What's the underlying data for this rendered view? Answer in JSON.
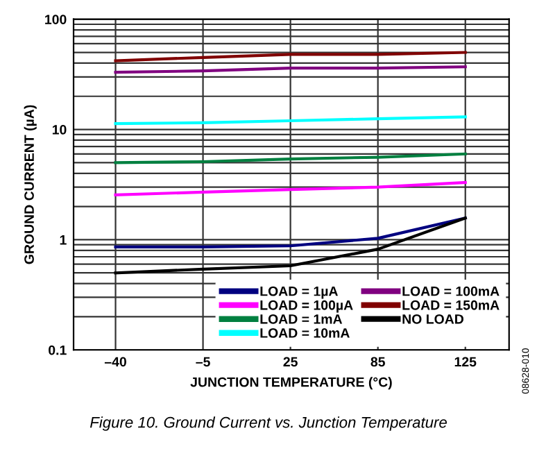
{
  "chart_data": {
    "type": "line",
    "xlabel": "JUNCTION TEMPERATURE (°C)",
    "ylabel": "GROUND CURRENT (µA)",
    "categories": [
      "–40",
      "–5",
      "25",
      "85",
      "125"
    ],
    "log": true,
    "ylim": [
      0.1,
      100
    ],
    "yticks": [
      0.1,
      1,
      10,
      100
    ],
    "grid": true,
    "legend": "bottom right",
    "marker": "none",
    "line_style": "solid",
    "series": [
      {
        "name": "LOAD = 1µA",
        "color": "#000080",
        "values": [
          0.86,
          0.86,
          0.88,
          1.03,
          1.57
        ]
      },
      {
        "name": "LOAD = 100µA",
        "color": "#ff00ff",
        "values": [
          2.55,
          2.7,
          2.85,
          3.0,
          3.3
        ]
      },
      {
        "name": "LOAD = 1mA",
        "color": "#008040",
        "values": [
          5.0,
          5.1,
          5.4,
          5.6,
          6.0
        ]
      },
      {
        "name": "LOAD = 10mA",
        "color": "#00ffff",
        "values": [
          11.3,
          11.5,
          12,
          12.5,
          13
        ]
      },
      {
        "name": "LOAD = 100mA",
        "color": "#800080",
        "values": [
          33,
          34,
          36,
          36,
          37
        ]
      },
      {
        "name": "LOAD = 150mA",
        "color": "#800000",
        "values": [
          42,
          45,
          48,
          48,
          50
        ]
      },
      {
        "name": "NO LOAD",
        "color": "#000000",
        "values": [
          0.5,
          0.54,
          0.58,
          0.82,
          1.57
        ]
      }
    ],
    "annotations": [
      "Figure 10. Ground Current vs. Junction Temperature",
      "08628-010"
    ]
  }
}
